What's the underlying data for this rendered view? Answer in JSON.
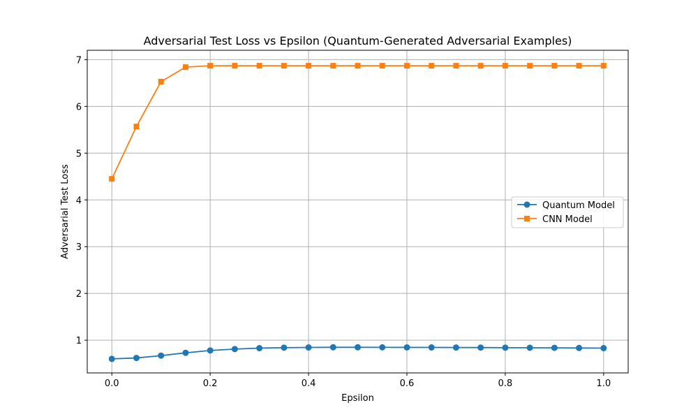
{
  "chart_data": {
    "type": "line",
    "title": "Adversarial Test Loss vs Epsilon (Quantum-Generated Adversarial Examples)",
    "xlabel": "Epsilon",
    "ylabel": "Adversarial Test Loss",
    "xlim": [
      -0.05,
      1.05
    ],
    "ylim": [
      0.3,
      7.2
    ],
    "x_ticks": [
      0.0,
      0.2,
      0.4,
      0.6,
      0.8,
      1.0
    ],
    "x_tick_labels": [
      "0.0",
      "0.2",
      "0.4",
      "0.6",
      "0.8",
      "1.0"
    ],
    "y_ticks": [
      1,
      2,
      3,
      4,
      5,
      6,
      7
    ],
    "y_tick_labels": [
      "1",
      "2",
      "3",
      "4",
      "5",
      "6",
      "7"
    ],
    "grid": true,
    "legend_position": "center-right",
    "x": [
      0.0,
      0.05,
      0.1,
      0.15,
      0.2,
      0.25,
      0.3,
      0.35,
      0.4,
      0.45,
      0.5,
      0.55,
      0.6,
      0.65,
      0.7,
      0.75,
      0.8,
      0.85,
      0.9,
      0.95,
      1.0
    ],
    "series": [
      {
        "name": "Quantum Model",
        "color": "#1f77b4",
        "marker": "circle",
        "values": [
          0.6,
          0.62,
          0.67,
          0.73,
          0.78,
          0.81,
          0.83,
          0.84,
          0.845,
          0.848,
          0.848,
          0.847,
          0.846,
          0.845,
          0.843,
          0.842,
          0.84,
          0.838,
          0.836,
          0.833,
          0.83
        ]
      },
      {
        "name": "CNN Model",
        "color": "#ff7f0e",
        "marker": "square",
        "values": [
          4.45,
          5.57,
          6.53,
          6.84,
          6.87,
          6.87,
          6.87,
          6.87,
          6.87,
          6.87,
          6.87,
          6.87,
          6.87,
          6.87,
          6.87,
          6.87,
          6.87,
          6.87,
          6.87,
          6.87,
          6.87
        ]
      }
    ]
  }
}
